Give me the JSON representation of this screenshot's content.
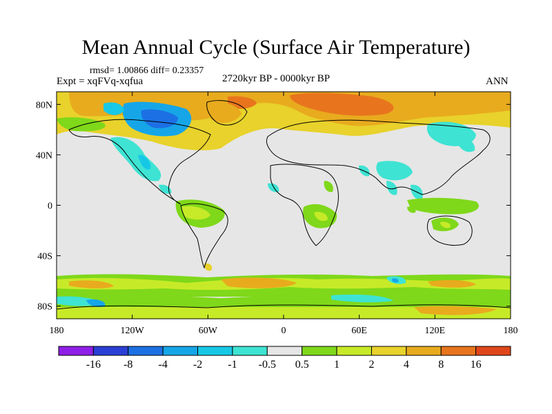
{
  "title": "Mean Annual Cycle (Surface Air Temperature)",
  "stats": "rmsd= 1.00866 diff= 0.23357",
  "experiment": "Expt = xqFVq-xqfua",
  "period": "2720kyr BP - 0000kyr BP",
  "season": "ANN",
  "map": {
    "x_ticks": [
      "180",
      "120W",
      "60W",
      "0",
      "60E",
      "120E",
      "180"
    ],
    "y_ticks": [
      "80N",
      "40N",
      "0",
      "40S",
      "80S"
    ],
    "lon_range": [
      -180,
      180
    ],
    "lat_range": [
      -90,
      90
    ]
  },
  "colorbar": {
    "colors": [
      "#8f1fe6",
      "#2b3fd6",
      "#1c70e4",
      "#16a6e8",
      "#17c8e6",
      "#3ee3d3",
      "#e6e6e6",
      "#7fd81a",
      "#c7ea28",
      "#e8d22b",
      "#e8ab1e",
      "#e8751d",
      "#e0461b"
    ],
    "labels": [
      "-16",
      "-8",
      "-4",
      "-2",
      "-1",
      "-0.5",
      "0.5",
      "1",
      "2",
      "4",
      "8",
      "16"
    ]
  },
  "colors": {
    "land_outline": "#000000",
    "neutral": "#e6e6e6",
    "warm_light": "#c7ea28",
    "warm_mid": "#e8d22b",
    "warm_strong": "#e8ab1e",
    "green": "#7fd81a",
    "cool_light": "#3ee3d3",
    "cool_mid": "#17c8e6",
    "cool_strong": "#16a6e8",
    "blue": "#1c70e4"
  }
}
